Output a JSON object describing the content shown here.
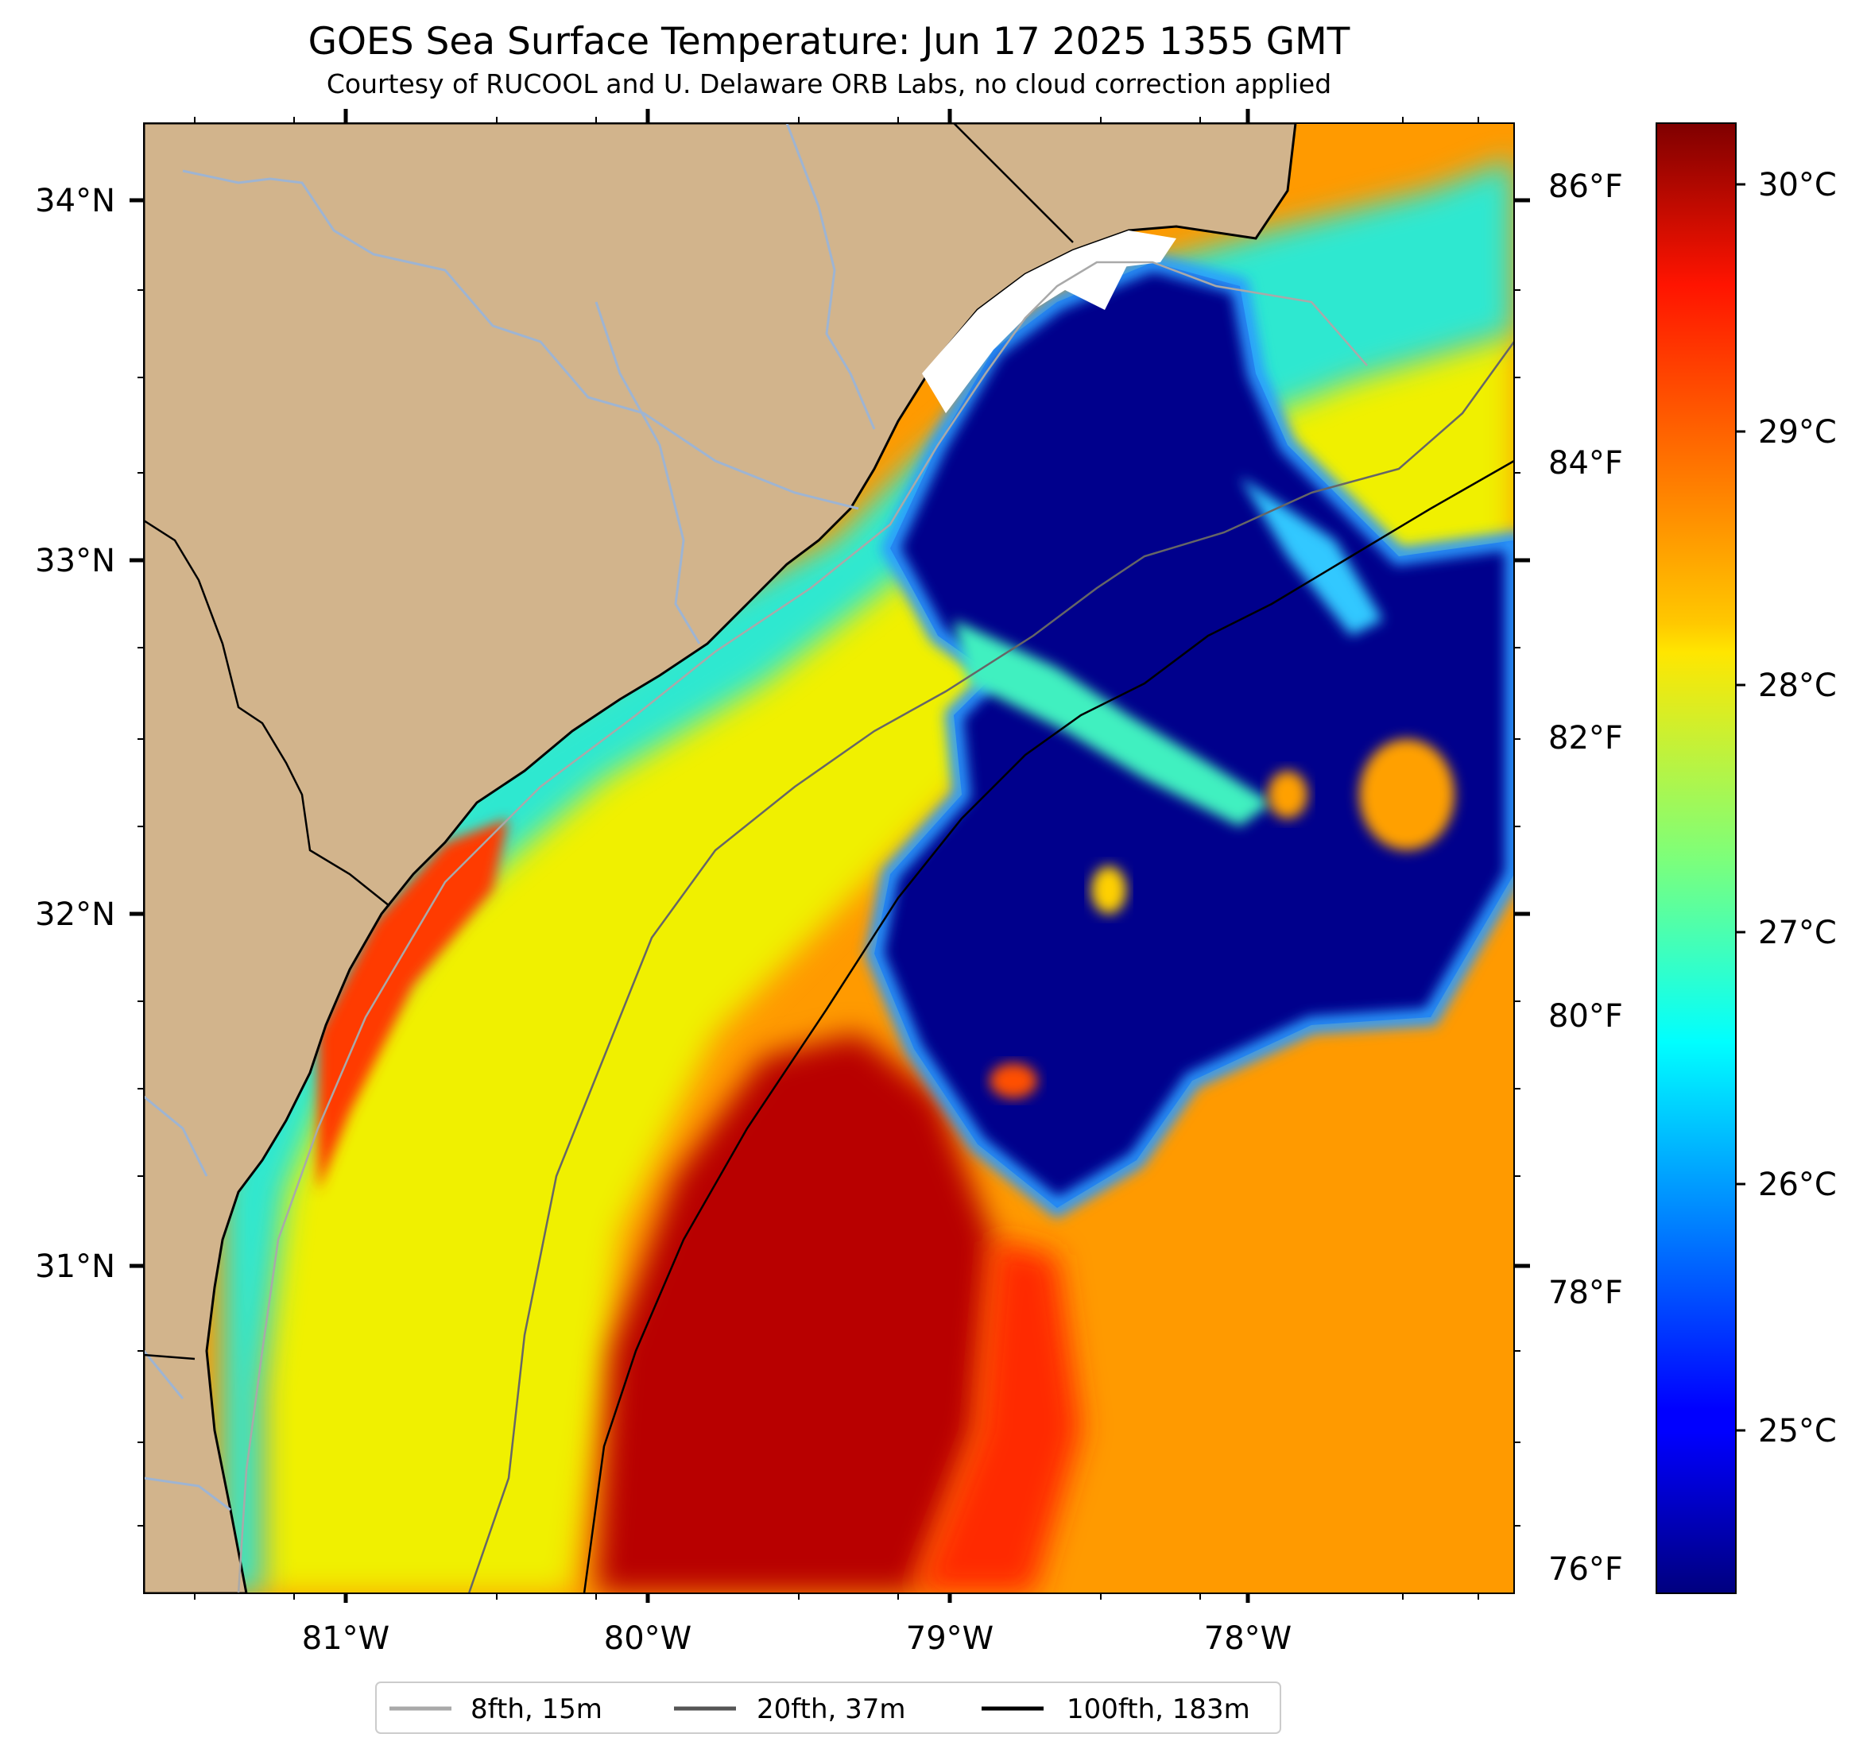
{
  "title": "GOES Sea Surface Temperature: Jun 17 2025 1355 GMT",
  "subtitle": "Courtesy of RUCOOL and U. Delaware ORB Labs, no cloud correction applied",
  "map": {
    "lon_range": [
      -81.67,
      -77.1
    ],
    "lat_range": [
      30.1,
      34.2
    ],
    "land_color": "#d2b48c",
    "no_data_color": "#ffffff",
    "lon_ticks": [
      "81°W",
      "80°W",
      "79°W",
      "78°W"
    ],
    "lat_ticks": [
      "34°N",
      "33°N",
      "32°N",
      "31°N"
    ]
  },
  "temperature_scale_f": {
    "ticks": [
      "86°F",
      "84°F",
      "82°F",
      "80°F",
      "78°F",
      "76°F"
    ]
  },
  "colorbar": {
    "colormap": "jet",
    "range_c": [
      24.2,
      30.2
    ],
    "ticks": [
      "30°C",
      "29°C",
      "28°C",
      "27°C",
      "26°C",
      "25°C"
    ]
  },
  "legend": {
    "items": [
      {
        "label": "8fth, 15m",
        "color": "#a9a9a9"
      },
      {
        "label": "20fth, 37m",
        "color": "#555555"
      },
      {
        "label": "100fth, 183m",
        "color": "#000000"
      }
    ]
  }
}
